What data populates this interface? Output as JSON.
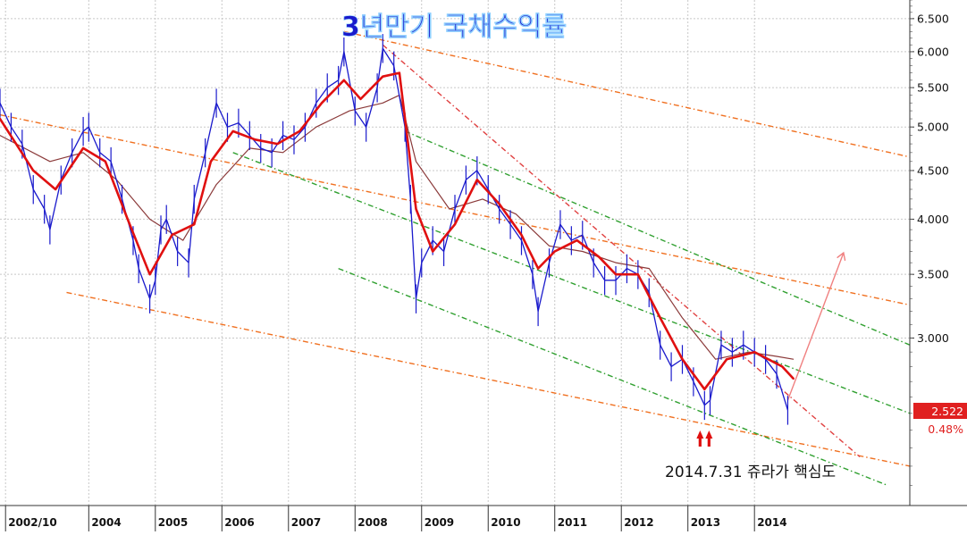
{
  "chart_data": {
    "type": "line",
    "title": "3년만기 국채수익률",
    "y_scale": "log",
    "ylim": [
      2.0,
      6.8
    ],
    "x_range": [
      "2002-09",
      "2016-05"
    ],
    "y_ticks": [
      {
        "value": 3.0,
        "label": "3.000"
      },
      {
        "value": 3.5,
        "label": "3.500"
      },
      {
        "value": 4.0,
        "label": "4.000"
      },
      {
        "value": 4.5,
        "label": "4.500"
      },
      {
        "value": 5.0,
        "label": "5.000"
      },
      {
        "value": 5.5,
        "label": "5.500"
      },
      {
        "value": 6.0,
        "label": "6.000"
      },
      {
        "value": 6.5,
        "label": "6.500"
      }
    ],
    "x_ticks": [
      {
        "value": "2002-10",
        "label": "2002/10"
      },
      {
        "value": "2004-01",
        "label": "2004"
      },
      {
        "value": "2005-01",
        "label": "2005"
      },
      {
        "value": "2006-01",
        "label": "2006"
      },
      {
        "value": "2007-01",
        "label": "2007"
      },
      {
        "value": "2008-01",
        "label": "2008"
      },
      {
        "value": "2009-01",
        "label": "2009"
      },
      {
        "value": "2010-01",
        "label": "2010"
      },
      {
        "value": "2011-01",
        "label": "2011"
      },
      {
        "value": "2012-01",
        "label": "2012"
      },
      {
        "value": "2013-01",
        "label": "2013"
      },
      {
        "value": "2014-01",
        "label": "2014"
      }
    ],
    "grid": true,
    "last_value": {
      "label": "2.522",
      "change": "0.48%",
      "value": 2.522
    },
    "annotation": {
      "text": "2014.7.31 쥬라가 핵심도",
      "date": "2014-07",
      "value": 2.522
    },
    "series": [
      {
        "role": "price",
        "color": "#1a1acc",
        "points": [
          [
            "2002-09",
            5.3
          ],
          [
            "2002-11",
            5.0
          ],
          [
            "2003-01",
            4.8
          ],
          [
            "2003-03",
            4.3
          ],
          [
            "2003-05",
            4.1
          ],
          [
            "2003-06",
            3.9
          ],
          [
            "2003-08",
            4.4
          ],
          [
            "2003-10",
            4.7
          ],
          [
            "2003-12",
            4.95
          ],
          [
            "2004-01",
            5.0
          ],
          [
            "2004-03",
            4.7
          ],
          [
            "2004-05",
            4.6
          ],
          [
            "2004-07",
            4.2
          ],
          [
            "2004-09",
            3.8
          ],
          [
            "2004-10",
            3.55
          ],
          [
            "2004-12",
            3.3
          ],
          [
            "2005-01",
            3.45
          ],
          [
            "2005-02",
            3.9
          ],
          [
            "2005-03",
            4.0
          ],
          [
            "2005-05",
            3.7
          ],
          [
            "2005-07",
            3.6
          ],
          [
            "2005-08",
            4.2
          ],
          [
            "2005-10",
            4.7
          ],
          [
            "2005-12",
            5.3
          ],
          [
            "2006-02",
            5.0
          ],
          [
            "2006-04",
            5.05
          ],
          [
            "2006-06",
            4.9
          ],
          [
            "2006-08",
            4.75
          ],
          [
            "2006-10",
            4.7
          ],
          [
            "2006-12",
            4.9
          ],
          [
            "2007-02",
            4.85
          ],
          [
            "2007-04",
            5.0
          ],
          [
            "2007-06",
            5.3
          ],
          [
            "2007-08",
            5.5
          ],
          [
            "2007-10",
            5.6
          ],
          [
            "2007-11",
            6.0
          ],
          [
            "2008-01",
            5.2
          ],
          [
            "2008-03",
            5.0
          ],
          [
            "2008-05",
            5.5
          ],
          [
            "2008-06",
            6.05
          ],
          [
            "2008-08",
            5.8
          ],
          [
            "2008-10",
            5.0
          ],
          [
            "2008-11",
            4.2
          ],
          [
            "2008-12",
            3.3
          ],
          [
            "2009-01",
            3.6
          ],
          [
            "2009-03",
            3.8
          ],
          [
            "2009-05",
            3.7
          ],
          [
            "2009-07",
            4.1
          ],
          [
            "2009-09",
            4.4
          ],
          [
            "2009-11",
            4.5
          ],
          [
            "2010-01",
            4.3
          ],
          [
            "2010-03",
            4.1
          ],
          [
            "2010-05",
            3.95
          ],
          [
            "2010-07",
            3.8
          ],
          [
            "2010-09",
            3.5
          ],
          [
            "2010-10",
            3.2
          ],
          [
            "2010-12",
            3.6
          ],
          [
            "2011-02",
            3.95
          ],
          [
            "2011-04",
            3.8
          ],
          [
            "2011-06",
            3.85
          ],
          [
            "2011-08",
            3.6
          ],
          [
            "2011-10",
            3.45
          ],
          [
            "2011-12",
            3.45
          ],
          [
            "2012-02",
            3.55
          ],
          [
            "2012-04",
            3.5
          ],
          [
            "2012-06",
            3.35
          ],
          [
            "2012-08",
            2.95
          ],
          [
            "2012-10",
            2.8
          ],
          [
            "2012-12",
            2.85
          ],
          [
            "2013-02",
            2.7
          ],
          [
            "2013-04",
            2.55
          ],
          [
            "2013-05",
            2.58
          ],
          [
            "2013-07",
            2.95
          ],
          [
            "2013-09",
            2.9
          ],
          [
            "2013-11",
            2.95
          ],
          [
            "2014-01",
            2.9
          ],
          [
            "2014-03",
            2.85
          ],
          [
            "2014-05",
            2.75
          ],
          [
            "2014-07",
            2.52
          ]
        ]
      },
      {
        "role": "fast-average",
        "color": "#e01010",
        "points": [
          [
            "2002-09",
            5.1
          ],
          [
            "2003-03",
            4.5
          ],
          [
            "2003-07",
            4.3
          ],
          [
            "2003-12",
            4.75
          ],
          [
            "2004-04",
            4.6
          ],
          [
            "2004-08",
            4.0
          ],
          [
            "2004-12",
            3.5
          ],
          [
            "2005-04",
            3.85
          ],
          [
            "2005-08",
            3.95
          ],
          [
            "2005-11",
            4.6
          ],
          [
            "2006-03",
            4.95
          ],
          [
            "2006-07",
            4.85
          ],
          [
            "2006-11",
            4.8
          ],
          [
            "2007-03",
            4.95
          ],
          [
            "2007-07",
            5.3
          ],
          [
            "2007-11",
            5.6
          ],
          [
            "2008-02",
            5.35
          ],
          [
            "2008-06",
            5.65
          ],
          [
            "2008-09",
            5.7
          ],
          [
            "2008-12",
            4.1
          ],
          [
            "2009-03",
            3.7
          ],
          [
            "2009-07",
            3.95
          ],
          [
            "2009-11",
            4.4
          ],
          [
            "2010-03",
            4.15
          ],
          [
            "2010-07",
            3.85
          ],
          [
            "2010-10",
            3.55
          ],
          [
            "2011-01",
            3.7
          ],
          [
            "2011-05",
            3.8
          ],
          [
            "2011-09",
            3.65
          ],
          [
            "2011-12",
            3.5
          ],
          [
            "2012-04",
            3.5
          ],
          [
            "2012-08",
            3.15
          ],
          [
            "2012-12",
            2.85
          ],
          [
            "2013-04",
            2.65
          ],
          [
            "2013-08",
            2.85
          ],
          [
            "2014-01",
            2.9
          ],
          [
            "2014-06",
            2.8
          ],
          [
            "2014-08",
            2.72
          ]
        ]
      },
      {
        "role": "slow-average",
        "color": "#8b3a3a",
        "points": [
          [
            "2002-09",
            4.9
          ],
          [
            "2003-06",
            4.6
          ],
          [
            "2003-12",
            4.7
          ],
          [
            "2004-06",
            4.4
          ],
          [
            "2004-12",
            4.0
          ],
          [
            "2005-06",
            3.8
          ],
          [
            "2005-12",
            4.35
          ],
          [
            "2006-06",
            4.75
          ],
          [
            "2006-12",
            4.7
          ],
          [
            "2007-06",
            5.0
          ],
          [
            "2007-12",
            5.2
          ],
          [
            "2008-06",
            5.3
          ],
          [
            "2008-09",
            5.4
          ],
          [
            "2008-12",
            4.6
          ],
          [
            "2009-06",
            4.1
          ],
          [
            "2009-12",
            4.2
          ],
          [
            "2010-06",
            4.05
          ],
          [
            "2010-12",
            3.75
          ],
          [
            "2011-06",
            3.7
          ],
          [
            "2011-12",
            3.6
          ],
          [
            "2012-06",
            3.55
          ],
          [
            "2012-12",
            3.15
          ],
          [
            "2013-06",
            2.85
          ],
          [
            "2013-12",
            2.9
          ],
          [
            "2014-05",
            2.87
          ],
          [
            "2014-08",
            2.85
          ]
        ]
      }
    ],
    "trendlines": [
      {
        "style": "dashed",
        "color": "#f07020",
        "from": [
          "2007-11",
          6.3
        ],
        "to": [
          "2016-05",
          4.65
        ]
      },
      {
        "style": "dashed",
        "color": "#f07020",
        "from": [
          "2002-09",
          5.15
        ],
        "to": [
          "2016-05",
          3.25
        ]
      },
      {
        "style": "dashed",
        "color": "#f07020",
        "from": [
          "2003-09",
          3.35
        ],
        "to": [
          "2016-05",
          2.2
        ]
      },
      {
        "style": "dashed",
        "color": "#30a030",
        "from": [
          "2008-10",
          4.95
        ],
        "to": [
          "2016-05",
          2.95
        ]
      },
      {
        "style": "dashed",
        "color": "#30a030",
        "from": [
          "2006-03",
          4.7
        ],
        "to": [
          "2016-05",
          2.5
        ]
      },
      {
        "style": "dashed",
        "color": "#30a030",
        "from": [
          "2007-10",
          3.55
        ],
        "to": [
          "2016-01",
          2.1
        ]
      },
      {
        "style": "dashed",
        "color": "#e04040",
        "from": [
          "2008-06",
          6.1
        ],
        "to": [
          "2015-08",
          2.25
        ]
      },
      {
        "style": "solid",
        "color": "#f08080",
        "from": [
          "2014-07",
          2.58
        ],
        "to": [
          "2015-05",
          3.68
        ]
      }
    ]
  }
}
